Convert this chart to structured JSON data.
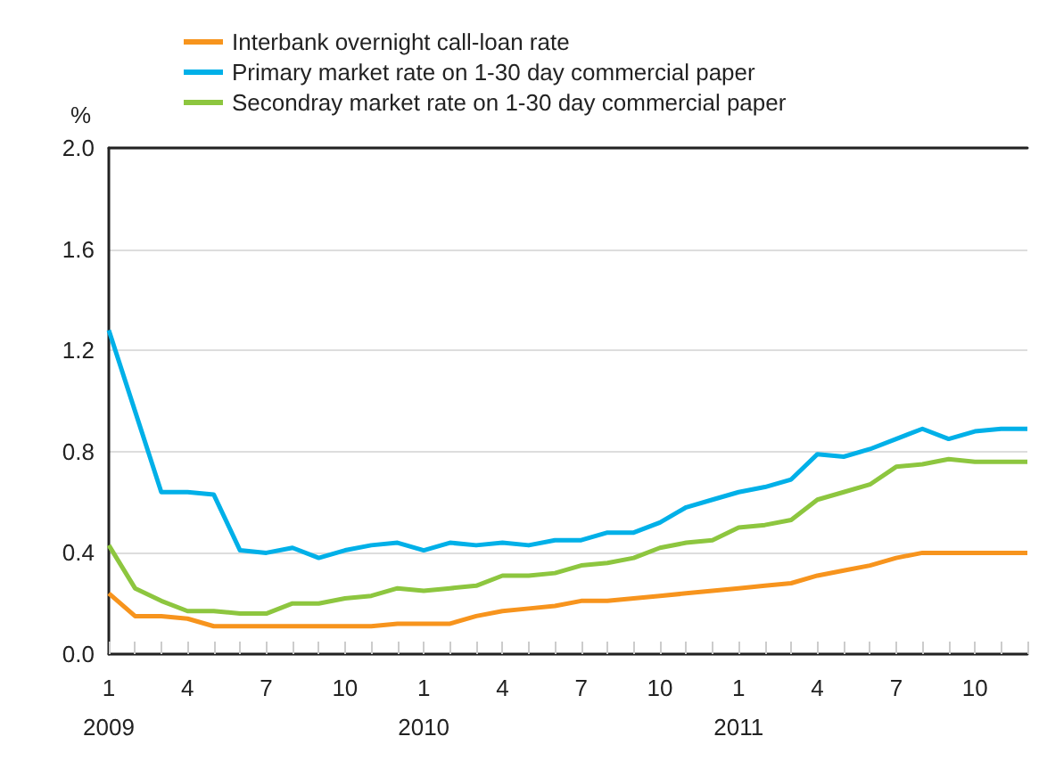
{
  "chart_data": {
    "type": "line",
    "ylabel": "%",
    "categories": [
      "1\n2009",
      null,
      null,
      "4",
      null,
      null,
      "7",
      null,
      null,
      "10",
      null,
      null,
      "1\n2010",
      null,
      null,
      "4",
      null,
      null,
      "7",
      null,
      null,
      "10",
      null,
      null,
      "1\n2011",
      null,
      null,
      "4",
      null,
      null,
      "7",
      null,
      null,
      "10",
      null,
      null
    ],
    "series": [
      {
        "name": "Interbank overnight call-loan rate",
        "color": "#f7941d",
        "values": [
          0.24,
          0.15,
          0.15,
          0.14,
          0.11,
          0.11,
          0.11,
          0.11,
          0.11,
          0.11,
          0.11,
          0.12,
          0.12,
          0.12,
          0.15,
          0.17,
          0.18,
          0.19,
          0.21,
          0.21,
          0.22,
          0.23,
          0.24,
          0.25,
          0.26,
          0.27,
          0.28,
          0.31,
          0.33,
          0.35,
          0.38,
          0.4,
          0.4,
          0.4,
          0.4,
          0.4
        ]
      },
      {
        "name": "Primary market rate on 1-30 day commercial paper",
        "color": "#00b0e8",
        "values": [
          1.28,
          0.96,
          0.64,
          0.64,
          0.63,
          0.41,
          0.4,
          0.42,
          0.38,
          0.41,
          0.43,
          0.44,
          0.41,
          0.44,
          0.43,
          0.44,
          0.43,
          0.45,
          0.45,
          0.48,
          0.48,
          0.52,
          0.58,
          0.61,
          0.64,
          0.66,
          0.69,
          0.79,
          0.78,
          0.81,
          0.85,
          0.89,
          0.85,
          0.88,
          0.89,
          0.89
        ]
      },
      {
        "name": "Secondray market rate on 1-30 day commercial paper",
        "color": "#8dc63f",
        "values": [
          0.43,
          0.26,
          0.21,
          0.17,
          0.17,
          0.16,
          0.16,
          0.2,
          0.2,
          0.22,
          0.23,
          0.26,
          0.25,
          0.26,
          0.27,
          0.31,
          0.31,
          0.32,
          0.35,
          0.36,
          0.38,
          0.42,
          0.44,
          0.45,
          0.5,
          0.51,
          0.53,
          0.61,
          0.64,
          0.67,
          0.74,
          0.75,
          0.77,
          0.76,
          0.76,
          0.76
        ]
      }
    ],
    "ylim": [
      0,
      2.0
    ],
    "yticks": [
      {
        "value": 0,
        "label": "0.0"
      },
      {
        "value": 0.4,
        "label": "0.4"
      },
      {
        "value": 0.8,
        "label": "0.8"
      },
      {
        "value": 1.2,
        "label": "1.2"
      },
      {
        "value": 1.6,
        "label": "1.6"
      },
      {
        "value": 2.0,
        "label": "2.0"
      }
    ],
    "grid": "y",
    "legend": "top",
    "marker": "none",
    "line_style": "solid"
  }
}
